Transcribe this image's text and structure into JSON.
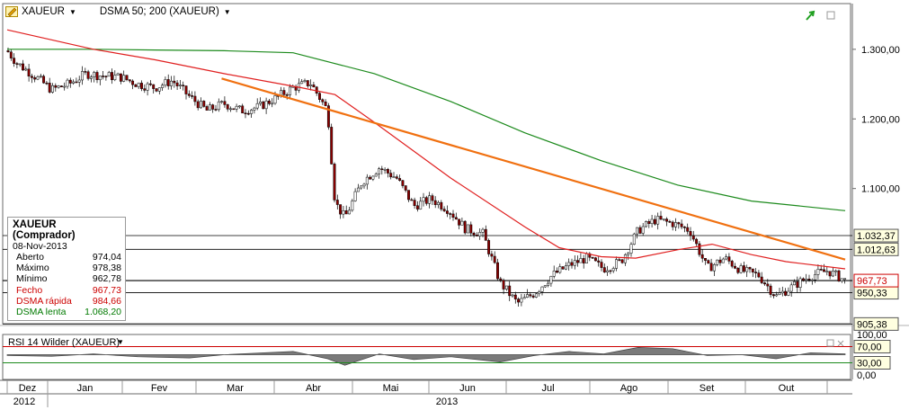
{
  "header": {
    "symbol": "XAUEUR",
    "indicator": "DSMA 50; 200 (XAUEUR)"
  },
  "ohlc": {
    "title": "XAUEUR (Comprador)",
    "date": "08-Nov-2013",
    "rows": [
      {
        "label": "Aberto",
        "value": "974,04",
        "color": "#000000"
      },
      {
        "label": "Máximo",
        "value": "978,38",
        "color": "#000000"
      },
      {
        "label": "Mínimo",
        "value": "962,78",
        "color": "#000000"
      },
      {
        "label": "Fecho",
        "value": "967,73",
        "color": "#cc0000"
      },
      {
        "label": "DSMA rápida",
        "value": "984,66",
        "color": "#cc0000"
      },
      {
        "label": "DSMA lenta",
        "value": "1.068,20",
        "color": "#007a00"
      }
    ]
  },
  "rsi": {
    "label": "RSI 14 Wilder (XAUEUR)",
    "ticks": [
      "100,00",
      "70,00",
      "30,00",
      "0,00"
    ]
  },
  "axis": {
    "price_ticks": [
      "1.300,00",
      "1.200,00",
      "1.100,00"
    ],
    "months": [
      "Dez",
      "Jan",
      "Fev",
      "Mar",
      "Abr",
      "Mai",
      "Jun",
      "Jul",
      "Ago",
      "Set",
      "Out"
    ],
    "years": [
      "2012",
      "2013"
    ]
  },
  "levels": [
    {
      "label": "1.032,37",
      "value": 1032.37
    },
    {
      "label": "1.012,63",
      "value": 1012.63
    },
    {
      "label": "950,33",
      "value": 950.33
    },
    {
      "label": "905,38",
      "value": 905.38
    }
  ],
  "current": {
    "label": "967,73",
    "value": 967.73
  },
  "colors": {
    "up": "#ffffff",
    "down": "#8b0000",
    "fast": "#e02020",
    "slow": "#1c8a1c",
    "trend": "#f07010",
    "rsi_fill": "#7a7a7a",
    "current": "#cc0000"
  },
  "chart_data": {
    "type": "candlestick",
    "xlabel": "",
    "ylabel": "",
    "ylim": [
      880,
      1345
    ],
    "trendline": {
      "from": {
        "date": "2013-02-28",
        "value": 1258
      },
      "to": {
        "date": "2013-11-08",
        "value": 998
      }
    },
    "series": [
      {
        "name": "XAUEUR",
        "kind": "close",
        "points": [
          [
            "2012-12-03",
            1298
          ],
          [
            "2012-12-07",
            1280
          ],
          [
            "2012-12-14",
            1262
          ],
          [
            "2012-12-21",
            1242
          ],
          [
            "2012-12-28",
            1250
          ],
          [
            "2013-01-04",
            1265
          ],
          [
            "2013-01-11",
            1262
          ],
          [
            "2013-01-18",
            1260
          ],
          [
            "2013-01-25",
            1250
          ],
          [
            "2013-02-01",
            1245
          ],
          [
            "2013-02-08",
            1255
          ],
          [
            "2013-02-15",
            1232
          ],
          [
            "2013-02-22",
            1212
          ],
          [
            "2013-03-01",
            1222
          ],
          [
            "2013-03-08",
            1212
          ],
          [
            "2013-03-15",
            1217
          ],
          [
            "2013-03-22",
            1230
          ],
          [
            "2013-03-29",
            1245
          ],
          [
            "2013-04-05",
            1252
          ],
          [
            "2013-04-12",
            1212
          ],
          [
            "2013-04-15",
            1080
          ],
          [
            "2013-04-19",
            1058
          ],
          [
            "2013-04-26",
            1110
          ],
          [
            "2013-05-03",
            1130
          ],
          [
            "2013-05-10",
            1115
          ],
          [
            "2013-05-17",
            1075
          ],
          [
            "2013-05-24",
            1085
          ],
          [
            "2013-05-31",
            1070
          ],
          [
            "2013-06-07",
            1042
          ],
          [
            "2013-06-14",
            1035
          ],
          [
            "2013-06-21",
            965
          ],
          [
            "2013-06-28",
            935
          ],
          [
            "2013-07-05",
            950
          ],
          [
            "2013-07-12",
            975
          ],
          [
            "2013-07-19",
            990
          ],
          [
            "2013-07-26",
            1000
          ],
          [
            "2013-08-02",
            985
          ],
          [
            "2013-08-09",
            995
          ],
          [
            "2013-08-16",
            1040
          ],
          [
            "2013-08-23",
            1055
          ],
          [
            "2013-08-30",
            1050
          ],
          [
            "2013-09-06",
            1040
          ],
          [
            "2013-09-13",
            985
          ],
          [
            "2013-09-20",
            1000
          ],
          [
            "2013-09-27",
            982
          ],
          [
            "2013-10-04",
            975
          ],
          [
            "2013-10-11",
            945
          ],
          [
            "2013-10-18",
            960
          ],
          [
            "2013-10-25",
            975
          ],
          [
            "2013-11-01",
            982
          ],
          [
            "2013-11-08",
            967.73
          ]
        ]
      },
      {
        "name": "DSMA rápida",
        "points": [
          [
            "2012-12-03",
            1328
          ],
          [
            "2013-01-07",
            1300
          ],
          [
            "2013-02-01",
            1285
          ],
          [
            "2013-03-01",
            1265
          ],
          [
            "2013-04-01",
            1245
          ],
          [
            "2013-04-15",
            1235
          ],
          [
            "2013-05-01",
            1195
          ],
          [
            "2013-06-01",
            1115
          ],
          [
            "2013-07-01",
            1045
          ],
          [
            "2013-07-15",
            1015
          ],
          [
            "2013-08-01",
            1002
          ],
          [
            "2013-08-15",
            1000
          ],
          [
            "2013-09-01",
            1012
          ],
          [
            "2013-09-15",
            1020
          ],
          [
            "2013-10-01",
            1005
          ],
          [
            "2013-10-15",
            995
          ],
          [
            "2013-11-08",
            984.66
          ]
        ]
      },
      {
        "name": "DSMA lenta",
        "points": [
          [
            "2012-12-03",
            1300
          ],
          [
            "2013-01-07",
            1300
          ],
          [
            "2013-02-01",
            1299
          ],
          [
            "2013-03-01",
            1298
          ],
          [
            "2013-03-29",
            1295
          ],
          [
            "2013-05-01",
            1265
          ],
          [
            "2013-06-01",
            1225
          ],
          [
            "2013-07-01",
            1180
          ],
          [
            "2013-08-01",
            1140
          ],
          [
            "2013-09-01",
            1105
          ],
          [
            "2013-10-01",
            1082
          ],
          [
            "2013-11-08",
            1068.2
          ]
        ]
      }
    ],
    "rsi_series": {
      "name": "RSI 14 Wilder (XAUEUR)",
      "ylim": [
        0,
        100
      ],
      "points": [
        [
          "2012-12-03",
          48
        ],
        [
          "2012-12-21",
          46
        ],
        [
          "2013-01-07",
          52
        ],
        [
          "2013-01-25",
          45
        ],
        [
          "2013-02-15",
          42
        ],
        [
          "2013-03-01",
          50
        ],
        [
          "2013-03-29",
          58
        ],
        [
          "2013-04-12",
          40
        ],
        [
          "2013-04-19",
          24
        ],
        [
          "2013-05-03",
          52
        ],
        [
          "2013-05-17",
          38
        ],
        [
          "2013-06-01",
          45
        ],
        [
          "2013-06-21",
          32
        ],
        [
          "2013-07-05",
          48
        ],
        [
          "2013-07-19",
          58
        ],
        [
          "2013-08-02",
          52
        ],
        [
          "2013-08-16",
          68
        ],
        [
          "2013-08-30",
          65
        ],
        [
          "2013-09-13",
          48
        ],
        [
          "2013-09-27",
          50
        ],
        [
          "2013-10-11",
          40
        ],
        [
          "2013-10-25",
          55
        ],
        [
          "2013-11-08",
          52
        ]
      ]
    }
  }
}
